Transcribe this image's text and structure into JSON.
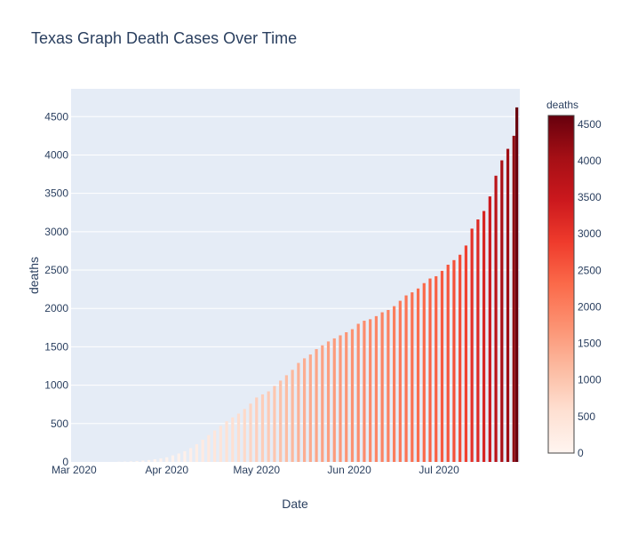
{
  "chart_data": {
    "type": "bar",
    "title": "Texas Graph Death Cases Over Time",
    "xlabel": "Date",
    "ylabel": "deaths",
    "x_range": [
      "2020-02-29",
      "2020-07-28"
    ],
    "x_ticks": [
      {
        "date": "2020-03-01",
        "label": "Mar 2020"
      },
      {
        "date": "2020-04-01",
        "label": "Apr 2020"
      },
      {
        "date": "2020-05-01",
        "label": "May 2020"
      },
      {
        "date": "2020-06-01",
        "label": "Jun 2020"
      },
      {
        "date": "2020-07-01",
        "label": "Jul 2020"
      }
    ],
    "ylim": [
      0,
      4862
    ],
    "y_ticks": [
      0,
      500,
      1000,
      1500,
      2000,
      2500,
      3000,
      3500,
      4000,
      4500
    ],
    "grid": true,
    "colorbar": {
      "title": "deaths",
      "range": [
        0,
        4620
      ],
      "ticks": [
        0,
        500,
        1000,
        1500,
        2000,
        2500,
        3000,
        3500,
        4000,
        4500
      ],
      "colorscale": [
        [
          0.0,
          "#fff5f0"
        ],
        [
          0.125,
          "#fee0d2"
        ],
        [
          0.25,
          "#fcbba1"
        ],
        [
          0.375,
          "#fc9272"
        ],
        [
          0.5,
          "#fb6a4a"
        ],
        [
          0.625,
          "#ef3b2c"
        ],
        [
          0.75,
          "#cb181d"
        ],
        [
          0.875,
          "#a50f15"
        ],
        [
          1.0,
          "#67000d"
        ]
      ]
    },
    "colors": {
      "plot_bg": "#e5ecf6",
      "grid": "#ffffff",
      "text": "#2a3f5f"
    },
    "series": [
      {
        "x": [
          "2020-03-16",
          "2020-03-18",
          "2020-03-20",
          "2020-03-22",
          "2020-03-24",
          "2020-03-26",
          "2020-03-28",
          "2020-03-30",
          "2020-04-01",
          "2020-04-03",
          "2020-04-05",
          "2020-04-07",
          "2020-04-09",
          "2020-04-11",
          "2020-04-13",
          "2020-04-15",
          "2020-04-17",
          "2020-04-19",
          "2020-04-21",
          "2020-04-23",
          "2020-04-25",
          "2020-04-27",
          "2020-04-29",
          "2020-05-01",
          "2020-05-03",
          "2020-05-05",
          "2020-05-07",
          "2020-05-09",
          "2020-05-11",
          "2020-05-13",
          "2020-05-15",
          "2020-05-17",
          "2020-05-19",
          "2020-05-21",
          "2020-05-23",
          "2020-05-25",
          "2020-05-27",
          "2020-05-29",
          "2020-05-31",
          "2020-06-02",
          "2020-06-04",
          "2020-06-06",
          "2020-06-08",
          "2020-06-10",
          "2020-06-12",
          "2020-06-14",
          "2020-06-16",
          "2020-06-18",
          "2020-06-20",
          "2020-06-22",
          "2020-06-24",
          "2020-06-26",
          "2020-06-28",
          "2020-06-30",
          "2020-07-02",
          "2020-07-04",
          "2020-07-06",
          "2020-07-08",
          "2020-07-10",
          "2020-07-12",
          "2020-07-14",
          "2020-07-16",
          "2020-07-18",
          "2020-07-20",
          "2020-07-22",
          "2020-07-24",
          "2020-07-26",
          "2020-07-27"
        ],
        "values": [
          3,
          5,
          8,
          12,
          18,
          25,
          35,
          45,
          60,
          85,
          110,
          140,
          180,
          230,
          290,
          350,
          410,
          470,
          530,
          580,
          630,
          690,
          760,
          840,
          880,
          920,
          990,
          1060,
          1130,
          1200,
          1290,
          1350,
          1400,
          1470,
          1520,
          1570,
          1610,
          1650,
          1690,
          1730,
          1800,
          1840,
          1860,
          1900,
          1950,
          1980,
          2030,
          2100,
          2170,
          2210,
          2260,
          2330,
          2390,
          2420,
          2490,
          2570,
          2630,
          2700,
          2820,
          3040,
          3160,
          3270,
          3460,
          3730,
          3930,
          4080,
          4250,
          4620
        ]
      }
    ]
  }
}
